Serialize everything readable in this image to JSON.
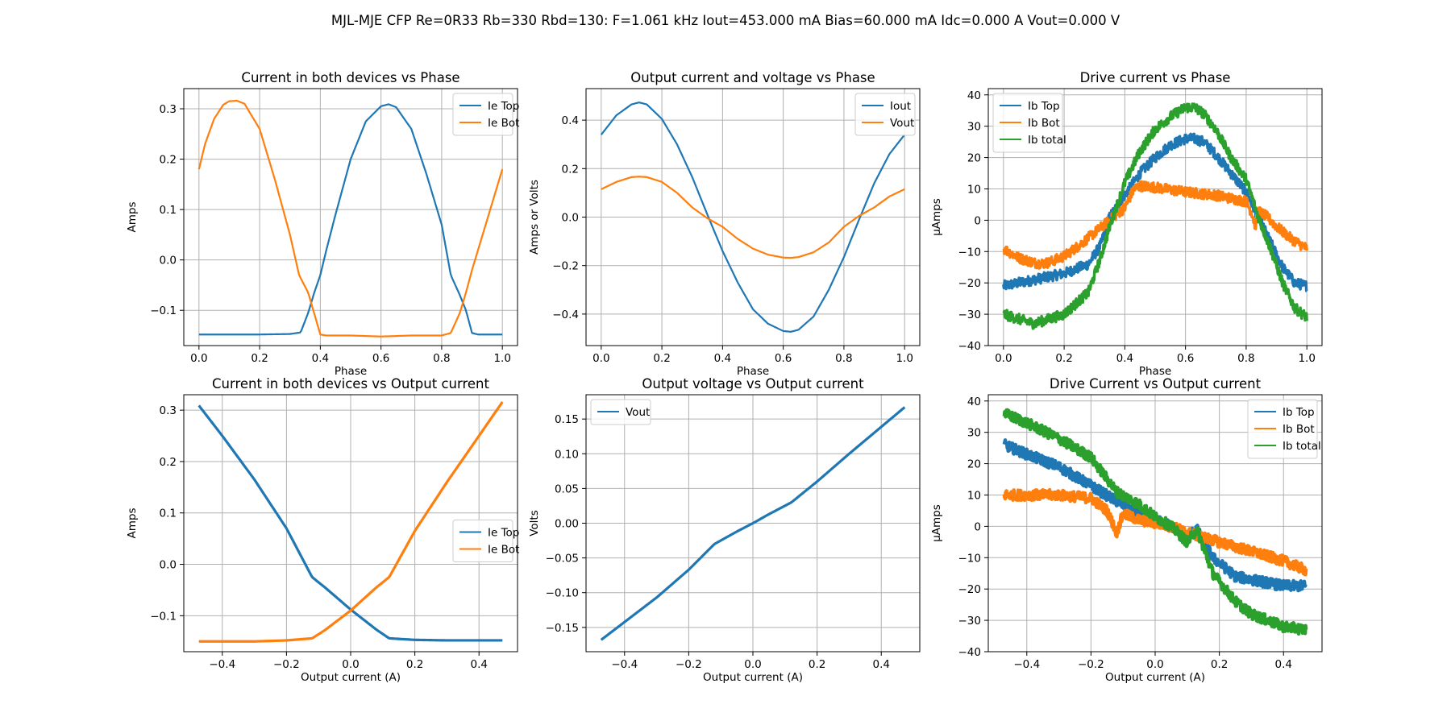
{
  "figure": {
    "suptitle": "MJL-MJE CFP Re=0R33 Rb=330 Rbd=130: F=1.061 kHz Iout=453.000 mA Bias=60.000 mA Idc=0.000 A Vout=0.000 V"
  },
  "colors": {
    "c0": "#1f77b4",
    "c1": "#ff7f0e",
    "c2": "#2ca02c",
    "grid": "#b0b0b0"
  },
  "chart_data": [
    {
      "id": "p1",
      "type": "line",
      "title": "Current in both devices vs Phase",
      "xlabel": "Phase",
      "ylabel": "Amps",
      "xlim": [
        -0.05,
        1.05
      ],
      "ylim": [
        -0.17,
        0.34
      ],
      "xticks": [
        0.0,
        0.2,
        0.4,
        0.6,
        0.8,
        1.0
      ],
      "xticklabels": [
        "0.0",
        "0.2",
        "0.4",
        "0.6",
        "0.8",
        "1.0"
      ],
      "yticks": [
        -0.1,
        0.0,
        0.1,
        0.2,
        0.3
      ],
      "yticklabels": [
        "−0.1",
        "0.0",
        "0.1",
        "0.2",
        "0.3"
      ],
      "grid": true,
      "legend_position": "upper right",
      "series": [
        {
          "name": "Ie Top",
          "color": "#1f77b4",
          "width": 2.2,
          "x": [
            0,
            0.1,
            0.2,
            0.3,
            0.335,
            0.36,
            0.38,
            0.4,
            0.42,
            0.45,
            0.5,
            0.55,
            0.6,
            0.625,
            0.65,
            0.7,
            0.75,
            0.8,
            0.83,
            0.86,
            0.88,
            0.9,
            0.92,
            0.95,
            1.0
          ],
          "y": [
            -0.148,
            -0.148,
            -0.148,
            -0.147,
            -0.144,
            -0.105,
            -0.065,
            -0.03,
            0.02,
            0.09,
            0.2,
            0.275,
            0.305,
            0.309,
            0.303,
            0.26,
            0.17,
            0.07,
            -0.03,
            -0.07,
            -0.1,
            -0.145,
            -0.148,
            -0.148,
            -0.148
          ]
        },
        {
          "name": "Ie Bot",
          "color": "#ff7f0e",
          "width": 2.2,
          "x": [
            0,
            0.02,
            0.05,
            0.08,
            0.1,
            0.125,
            0.15,
            0.2,
            0.25,
            0.3,
            0.33,
            0.36,
            0.4,
            0.42,
            0.5,
            0.6,
            0.7,
            0.8,
            0.83,
            0.86,
            0.88,
            0.9,
            0.92,
            0.95,
            0.97,
            1.0
          ],
          "y": [
            0.18,
            0.23,
            0.28,
            0.308,
            0.315,
            0.316,
            0.31,
            0.26,
            0.16,
            0.05,
            -0.03,
            -0.065,
            -0.148,
            -0.15,
            -0.15,
            -0.152,
            -0.15,
            -0.15,
            -0.145,
            -0.105,
            -0.065,
            -0.02,
            0.02,
            0.08,
            0.12,
            0.18
          ]
        }
      ]
    },
    {
      "id": "p2",
      "type": "line",
      "title": "Output current and voltage vs Phase",
      "xlabel": "Phase",
      "ylabel": "Amps or Volts",
      "xlim": [
        -0.05,
        1.05
      ],
      "ylim": [
        -0.53,
        0.53
      ],
      "xticks": [
        0.0,
        0.2,
        0.4,
        0.6,
        0.8,
        1.0
      ],
      "xticklabels": [
        "0.0",
        "0.2",
        "0.4",
        "0.6",
        "0.8",
        "1.0"
      ],
      "yticks": [
        -0.4,
        -0.2,
        0.0,
        0.2,
        0.4
      ],
      "yticklabels": [
        "−0.4",
        "−0.2",
        "0.0",
        "0.2",
        "0.4"
      ],
      "grid": true,
      "legend_position": "upper right",
      "series": [
        {
          "name": "Iout",
          "color": "#1f77b4",
          "width": 2.2,
          "x": [
            0,
            0.05,
            0.1,
            0.125,
            0.15,
            0.2,
            0.25,
            0.3,
            0.35,
            0.4,
            0.45,
            0.5,
            0.55,
            0.6,
            0.625,
            0.65,
            0.7,
            0.75,
            0.8,
            0.85,
            0.9,
            0.95,
            1.0
          ],
          "y": [
            0.34,
            0.42,
            0.465,
            0.473,
            0.465,
            0.405,
            0.3,
            0.165,
            0.01,
            -0.14,
            -0.27,
            -0.38,
            -0.44,
            -0.47,
            -0.473,
            -0.465,
            -0.41,
            -0.3,
            -0.165,
            -0.01,
            0.14,
            0.26,
            0.34
          ]
        },
        {
          "name": "Vout",
          "color": "#ff7f0e",
          "width": 2.2,
          "x": [
            0,
            0.05,
            0.1,
            0.125,
            0.15,
            0.2,
            0.25,
            0.3,
            0.35,
            0.4,
            0.45,
            0.5,
            0.55,
            0.6,
            0.625,
            0.65,
            0.7,
            0.75,
            0.8,
            0.85,
            0.9,
            0.95,
            1.0
          ],
          "y": [
            0.115,
            0.145,
            0.165,
            0.167,
            0.165,
            0.145,
            0.1,
            0.04,
            -0.005,
            -0.04,
            -0.09,
            -0.13,
            -0.155,
            -0.167,
            -0.168,
            -0.165,
            -0.145,
            -0.105,
            -0.04,
            0.005,
            0.04,
            0.085,
            0.115
          ]
        }
      ]
    },
    {
      "id": "p3",
      "type": "line",
      "title": "Drive current vs Phase",
      "xlabel": "Phase",
      "ylabel": "µAmps",
      "xlim": [
        -0.05,
        1.05
      ],
      "ylim": [
        -40,
        42
      ],
      "xticks": [
        0.0,
        0.2,
        0.4,
        0.6,
        0.8,
        1.0
      ],
      "xticklabels": [
        "0.0",
        "0.2",
        "0.4",
        "0.6",
        "0.8",
        "1.0"
      ],
      "yticks": [
        -40,
        -30,
        -20,
        -10,
        0,
        10,
        20,
        30,
        40
      ],
      "yticklabels": [
        "−40",
        "−30",
        "−20",
        "−10",
        "0",
        "10",
        "20",
        "30",
        "40"
      ],
      "grid": true,
      "legend_position": "upper left",
      "series": [
        {
          "name": "Ib Top",
          "color": "#1f77b4",
          "width": 3.5,
          "x": [
            0,
            0.1,
            0.2,
            0.28,
            0.32,
            0.35,
            0.4,
            0.45,
            0.5,
            0.55,
            0.6,
            0.63,
            0.66,
            0.7,
            0.75,
            0.8,
            0.84,
            0.88,
            0.92,
            0.96,
            1.0
          ],
          "y": [
            -21,
            -19,
            -17,
            -14,
            -8,
            1,
            8,
            15,
            20,
            24,
            26,
            26,
            25,
            21,
            15,
            9,
            1,
            -7,
            -15,
            -20,
            -21
          ]
        },
        {
          "name": "Ib Bot",
          "color": "#ff7f0e",
          "width": 3.5,
          "x": [
            0,
            0.05,
            0.1,
            0.125,
            0.15,
            0.2,
            0.25,
            0.3,
            0.35,
            0.4,
            0.43,
            0.45,
            0.5,
            0.6,
            0.7,
            0.8,
            0.82,
            0.83,
            0.84,
            0.87,
            0.9,
            0.95,
            1.0
          ],
          "y": [
            -9,
            -12,
            -13.5,
            -13.8,
            -13.5,
            -11.5,
            -8,
            -4,
            0,
            4,
            10,
            11,
            10.5,
            9,
            8,
            6,
            2,
            -2,
            3,
            1,
            -2,
            -6,
            -9
          ]
        },
        {
          "name": "Ib total",
          "color": "#2ca02c",
          "width": 3.5,
          "x": [
            0,
            0.1,
            0.2,
            0.28,
            0.32,
            0.35,
            0.4,
            0.45,
            0.5,
            0.55,
            0.6,
            0.63,
            0.66,
            0.7,
            0.75,
            0.8,
            0.84,
            0.88,
            0.92,
            0.96,
            1.0
          ],
          "y": [
            -30,
            -33,
            -30,
            -23,
            -12,
            -2,
            12,
            22,
            29,
            33,
            36,
            36,
            34,
            29,
            20,
            13,
            1,
            -9,
            -20,
            -28,
            -31
          ]
        }
      ]
    },
    {
      "id": "p4",
      "type": "line",
      "title": "Current in both devices vs Output current",
      "xlabel": "Output current (A)",
      "ylabel": "Amps",
      "xlim": [
        -0.52,
        0.52
      ],
      "ylim": [
        -0.17,
        0.33
      ],
      "xticks": [
        -0.4,
        -0.2,
        0.0,
        0.2,
        0.4
      ],
      "xticklabels": [
        "−0.4",
        "−0.2",
        "0.0",
        "0.2",
        "0.4"
      ],
      "yticks": [
        -0.1,
        0.0,
        0.1,
        0.2,
        0.3
      ],
      "yticklabels": [
        "−0.1",
        "0.0",
        "0.1",
        "0.2",
        "0.3"
      ],
      "grid": true,
      "legend_position": "center right",
      "series": [
        {
          "name": "Ie Top",
          "color": "#1f77b4",
          "width": 3.2,
          "x": [
            -0.473,
            -0.4,
            -0.3,
            -0.2,
            -0.12,
            -0.08,
            0.0,
            0.08,
            0.12,
            0.2,
            0.3,
            0.4,
            0.473
          ],
          "y": [
            0.309,
            0.25,
            0.165,
            0.07,
            -0.025,
            -0.045,
            -0.088,
            -0.127,
            -0.144,
            -0.147,
            -0.148,
            -0.148,
            -0.148
          ]
        },
        {
          "name": "Ie Bot",
          "color": "#ff7f0e",
          "width": 3.2,
          "x": [
            -0.473,
            -0.4,
            -0.3,
            -0.2,
            -0.12,
            -0.08,
            0.0,
            0.08,
            0.12,
            0.2,
            0.3,
            0.4,
            0.473
          ],
          "y": [
            -0.15,
            -0.15,
            -0.15,
            -0.148,
            -0.144,
            -0.128,
            -0.09,
            -0.045,
            -0.025,
            0.065,
            0.16,
            0.25,
            0.316
          ]
        }
      ]
    },
    {
      "id": "p5",
      "type": "line",
      "title": "Output voltage vs Output current",
      "xlabel": "Output current (A)",
      "ylabel": "Volts",
      "xlim": [
        -0.52,
        0.52
      ],
      "ylim": [
        -0.185,
        0.185
      ],
      "xticks": [
        -0.4,
        -0.2,
        0.0,
        0.2,
        0.4
      ],
      "xticklabels": [
        "−0.4",
        "−0.2",
        "0.0",
        "0.2",
        "0.4"
      ],
      "yticks": [
        -0.15,
        -0.1,
        -0.05,
        0.0,
        0.05,
        0.1,
        0.15
      ],
      "yticklabels": [
        "−0.15",
        "−0.10",
        "−0.05",
        "0.00",
        "0.05",
        "0.10",
        "0.15"
      ],
      "grid": true,
      "legend_position": "upper left",
      "series": [
        {
          "name": "Vout",
          "color": "#1f77b4",
          "width": 3.2,
          "x": [
            -0.473,
            -0.3,
            -0.2,
            -0.12,
            -0.05,
            0.0,
            0.05,
            0.12,
            0.2,
            0.3,
            0.473
          ],
          "y": [
            -0.168,
            -0.107,
            -0.067,
            -0.03,
            -0.012,
            0.0,
            0.013,
            0.03,
            0.06,
            0.1,
            0.167
          ]
        }
      ]
    },
    {
      "id": "p6",
      "type": "line",
      "title": "Drive Current vs Output current",
      "xlabel": "Output current (A)",
      "ylabel": "µAmps",
      "xlim": [
        -0.52,
        0.52
      ],
      "ylim": [
        -40,
        42
      ],
      "xticks": [
        -0.4,
        -0.2,
        0.0,
        0.2,
        0.4
      ],
      "xticklabels": [
        "−0.4",
        "−0.2",
        "0.0",
        "0.2",
        "0.4"
      ],
      "yticks": [
        -40,
        -30,
        -20,
        -10,
        0,
        10,
        20,
        30,
        40
      ],
      "yticklabels": [
        "−40",
        "−30",
        "−20",
        "−10",
        "0",
        "10",
        "20",
        "30",
        "40"
      ],
      "grid": true,
      "legend_position": "upper right",
      "series": [
        {
          "name": "Ib Top",
          "color": "#1f77b4",
          "width": 4.5,
          "x": [
            -0.47,
            -0.4,
            -0.3,
            -0.2,
            -0.12,
            -0.05,
            0.0,
            0.05,
            0.1,
            0.13,
            0.18,
            0.25,
            0.3,
            0.35,
            0.4,
            0.47
          ],
          "y": [
            26,
            23,
            19,
            13,
            8,
            4,
            2,
            0,
            -3,
            -1,
            -10,
            -16,
            -17,
            -18,
            -19,
            -19
          ]
        },
        {
          "name": "Ib Bot",
          "color": "#ff7f0e",
          "width": 4.5,
          "x": [
            -0.47,
            -0.4,
            -0.3,
            -0.2,
            -0.15,
            -0.12,
            -0.1,
            -0.05,
            0.0,
            0.05,
            0.1,
            0.2,
            0.3,
            0.4,
            0.47
          ],
          "y": [
            10,
            10,
            10,
            9,
            5,
            -2,
            4,
            2,
            1,
            0,
            -2,
            -5,
            -8,
            -11,
            -14
          ]
        },
        {
          "name": "Ib total",
          "color": "#2ca02c",
          "width": 4.5,
          "x": [
            -0.47,
            -0.4,
            -0.3,
            -0.2,
            -0.12,
            -0.05,
            0.0,
            0.05,
            0.1,
            0.13,
            0.18,
            0.25,
            0.3,
            0.35,
            0.4,
            0.47
          ],
          "y": [
            36,
            33,
            28,
            22,
            11,
            7,
            3,
            0,
            -5,
            -1,
            -15,
            -24,
            -28,
            -30,
            -32,
            -33
          ]
        }
      ]
    }
  ]
}
